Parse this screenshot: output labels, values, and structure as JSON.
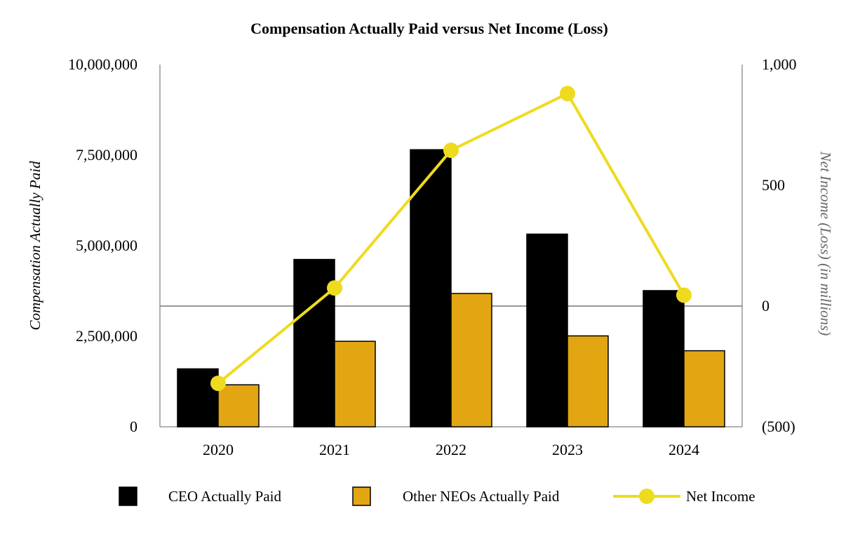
{
  "chart_data": {
    "type": "bar",
    "title": "Compensation Actually Paid versus Net Income (Loss)",
    "categories": [
      "2020",
      "2021",
      "2022",
      "2023",
      "2024"
    ],
    "series": [
      {
        "name": "CEO Actually Paid",
        "kind": "bar",
        "axis": "left",
        "color": "#000000",
        "values": [
          1600000,
          4620000,
          7650000,
          5320000,
          3760000
        ]
      },
      {
        "name": "Other NEOs Actually Paid",
        "kind": "bar",
        "axis": "left",
        "color": "#E2A613",
        "values": [
          1160000,
          2360000,
          3680000,
          2510000,
          2100000
        ]
      },
      {
        "name": "Net Income",
        "kind": "line",
        "axis": "right",
        "color": "#EEDB1F",
        "values": [
          -320,
          75,
          645,
          880,
          45
        ]
      }
    ],
    "left_axis": {
      "label": "Compensation Actually Paid",
      "range": [
        0,
        10000000
      ],
      "ticks": [
        0,
        2500000,
        5000000,
        7500000,
        10000000
      ],
      "tick_labels": [
        "0",
        "2,500,000",
        "5,000,000",
        "7,500,000",
        "10,000,000"
      ]
    },
    "right_axis": {
      "label": "Net Income (Loss) (in millions)",
      "range": [
        -500,
        1000
      ],
      "ticks": [
        -500,
        0,
        500,
        1000
      ],
      "tick_labels": [
        "(500)",
        "0",
        "500",
        "1,000"
      ]
    },
    "grid": false,
    "legend": {
      "position": "bottom",
      "entries": [
        "CEO Actually Paid",
        "Other NEOs Actually Paid",
        "Net Income"
      ]
    }
  }
}
